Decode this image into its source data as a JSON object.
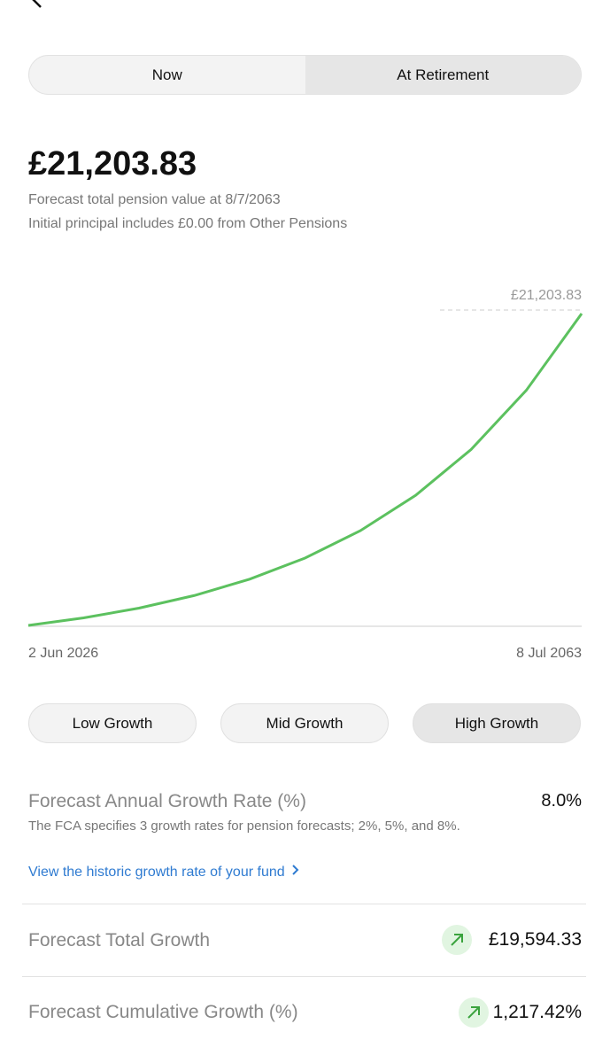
{
  "tabs": [
    "Now",
    "At Retirement"
  ],
  "total": "£21,203.83",
  "subtitle": "Forecast total pension value at 8/7/2063",
  "note": "Initial principal includes £0.00 from Other Pensions",
  "chart_data": {
    "type": "line",
    "categories": [
      "2 Jun 2026",
      null,
      null,
      null,
      null,
      null,
      null,
      null,
      null,
      null,
      "8 Jul 2063"
    ],
    "series": [
      {
        "name": "Forecast",
        "color": "#5cc15f",
        "values": [
          1609.5,
          2083,
          2695,
          3488,
          4514,
          5842,
          7560,
          9783,
          12660,
          16384,
          21203.83
        ]
      }
    ],
    "end_label": "£21,203.83",
    "ylim": [
      1609.5,
      21203.83
    ]
  },
  "growth_options": [
    "Low Growth",
    "Mid Growth",
    "High Growth"
  ],
  "rate": {
    "label": "Forecast Annual Growth Rate (%)",
    "value": "8.0%",
    "description": "The FCA specifies 3 growth rates for pension forecasts; 2%, 5%, and 8%.",
    "link": "View the historic growth rate of your fund"
  },
  "rows": [
    {
      "label": "Forecast Total Growth",
      "value": "£19,594.33"
    },
    {
      "label": "Forecast Cumulative Growth (%)",
      "value": "1,217.42%"
    }
  ]
}
